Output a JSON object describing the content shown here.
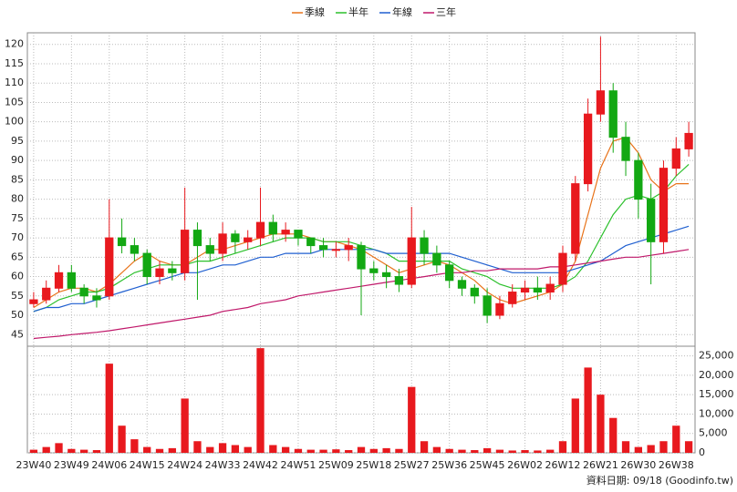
{
  "chart_data": {
    "type": "candlestick",
    "legend": "top",
    "grid": true,
    "up_color": "#e8191e",
    "down_color": "#13a813",
    "categories": [
      "23W40",
      null,
      null,
      "23W49",
      null,
      null,
      "24W06",
      null,
      null,
      "24W15",
      null,
      null,
      "24W24",
      null,
      null,
      "24W33",
      null,
      null,
      "24W42",
      null,
      null,
      "24W51",
      null,
      null,
      "25W09",
      null,
      null,
      "25W18",
      null,
      null,
      "25W27",
      null,
      null,
      "25W36",
      null,
      null,
      "25W45",
      null,
      null,
      "26W02",
      null,
      null,
      "26W12",
      null,
      null,
      "26W21",
      null,
      null,
      "26W30",
      null,
      null,
      "26W38",
      null
    ],
    "open": [
      53,
      54,
      57,
      61,
      57,
      55,
      55,
      70,
      68,
      66,
      60,
      62,
      61,
      72,
      68,
      66,
      71,
      69,
      70,
      74,
      71,
      72,
      70,
      68,
      67,
      67,
      68,
      62,
      61,
      60,
      58,
      70,
      66,
      63,
      59,
      57,
      55,
      50,
      53,
      56,
      57,
      56,
      58,
      66,
      84,
      102,
      108,
      96,
      90,
      80,
      69,
      88,
      93
    ],
    "high": [
      56,
      59,
      63,
      63,
      58,
      57,
      80,
      75,
      70,
      67,
      64,
      64,
      83,
      74,
      70,
      74,
      72,
      72,
      83,
      76,
      74,
      72,
      70,
      70,
      69,
      70,
      69,
      64,
      63,
      62,
      78,
      72,
      68,
      64,
      60,
      58,
      57,
      55,
      58,
      59,
      60,
      60,
      68,
      86,
      106,
      122,
      110,
      100,
      92,
      84,
      90,
      96,
      100
    ],
    "low": [
      52,
      53,
      56,
      56,
      53,
      52,
      54,
      66,
      64,
      58,
      58,
      59,
      59,
      54,
      64,
      64,
      66,
      67,
      68,
      69,
      69,
      68,
      66,
      65,
      65,
      64,
      50,
      59,
      57,
      56,
      57,
      63,
      61,
      57,
      55,
      53,
      48,
      49,
      52,
      54,
      54,
      54,
      56,
      64,
      82,
      100,
      92,
      86,
      75,
      58,
      66,
      86,
      91
    ],
    "close": [
      54,
      57,
      61,
      57,
      55,
      54,
      70,
      68,
      66,
      60,
      62,
      61,
      72,
      68,
      66,
      71,
      69,
      70,
      74,
      71,
      72,
      70,
      68,
      67,
      67,
      68,
      62,
      61,
      60,
      58,
      70,
      66,
      63,
      59,
      57,
      55,
      50,
      53,
      56,
      57,
      56,
      58,
      66,
      84,
      102,
      108,
      96,
      90,
      80,
      69,
      88,
      93,
      97
    ],
    "series": [
      {
        "name": "季線",
        "color": "#e8731a",
        "values": [
          52,
          54,
          56,
          57,
          57,
          56,
          58,
          61,
          64,
          66,
          64,
          63,
          63,
          65,
          67,
          67,
          68,
          69,
          70,
          71,
          71,
          71,
          70,
          69,
          69,
          68,
          67,
          65,
          63,
          61,
          62,
          63,
          64,
          63,
          61,
          59,
          56,
          54,
          53,
          54,
          55,
          56,
          58,
          64,
          76,
          88,
          95,
          96,
          92,
          85,
          82,
          84,
          84
        ]
      },
      {
        "name": "半年",
        "color": "#2bc02b",
        "values": [
          51,
          52,
          54,
          55,
          56,
          56,
          57,
          59,
          61,
          62,
          63,
          63,
          63,
          64,
          64,
          65,
          66,
          67,
          68,
          69,
          70,
          70,
          70,
          69,
          69,
          69,
          68,
          67,
          66,
          64,
          64,
          64,
          64,
          64,
          62,
          61,
          60,
          58,
          57,
          57,
          57,
          57,
          58,
          60,
          64,
          70,
          76,
          80,
          81,
          80,
          82,
          86,
          89
        ]
      },
      {
        "name": "年線",
        "color": "#1f5fd0",
        "values": [
          51,
          52,
          52,
          53,
          53,
          54,
          55,
          56,
          57,
          58,
          59,
          60,
          61,
          61,
          62,
          63,
          63,
          64,
          65,
          65,
          66,
          66,
          66,
          67,
          67,
          67,
          67,
          67,
          66,
          66,
          66,
          66,
          66,
          66,
          65,
          64,
          63,
          62,
          61,
          61,
          61,
          61,
          61,
          62,
          63,
          64,
          66,
          68,
          69,
          70,
          71,
          72,
          73
        ]
      },
      {
        "name": "三年",
        "color": "#c0186a",
        "values": [
          44,
          44.3,
          44.6,
          45,
          45.3,
          45.6,
          46,
          46.5,
          47,
          47.5,
          48,
          48.5,
          49,
          49.5,
          50,
          51,
          51.5,
          52,
          53,
          53.5,
          54,
          55,
          55.5,
          56,
          56.5,
          57,
          57.5,
          58,
          58.5,
          59,
          59.5,
          60,
          60.5,
          61,
          61,
          61.5,
          61.5,
          62,
          62,
          62,
          62,
          62.5,
          62.5,
          63,
          63.5,
          64,
          64.5,
          65,
          65,
          65.5,
          66,
          66.5,
          67
        ]
      }
    ],
    "ylim": [
      42,
      123
    ],
    "yticks": [
      45,
      50,
      55,
      60,
      65,
      70,
      75,
      80,
      85,
      90,
      95,
      100,
      105,
      110,
      115,
      120
    ],
    "volume": {
      "color": "#e8191e",
      "values": [
        800,
        1500,
        2500,
        1000,
        800,
        700,
        23000,
        7000,
        3500,
        1500,
        1000,
        1200,
        14000,
        3000,
        1500,
        2500,
        2000,
        1500,
        27000,
        2000,
        1500,
        1000,
        800,
        800,
        900,
        700,
        1500,
        1000,
        1200,
        1000,
        17000,
        3000,
        1500,
        1000,
        800,
        700,
        1200,
        800,
        600,
        700,
        600,
        800,
        3000,
        14000,
        22000,
        15000,
        9000,
        3000,
        1500,
        2000,
        3000,
        7000,
        3000
      ],
      "ylim": [
        0,
        27500
      ],
      "yticks": [
        0,
        {
          "value": 5000,
          "label": "5,000"
        },
        {
          "value": 10000,
          "label": "10,000"
        },
        {
          "value": 15000,
          "label": "15,000"
        },
        {
          "value": 20000,
          "label": "20,000"
        },
        {
          "value": 25000,
          "label": "25,000"
        }
      ]
    },
    "source": "資料日期: 09/18 (Goodinfo.tw)"
  }
}
